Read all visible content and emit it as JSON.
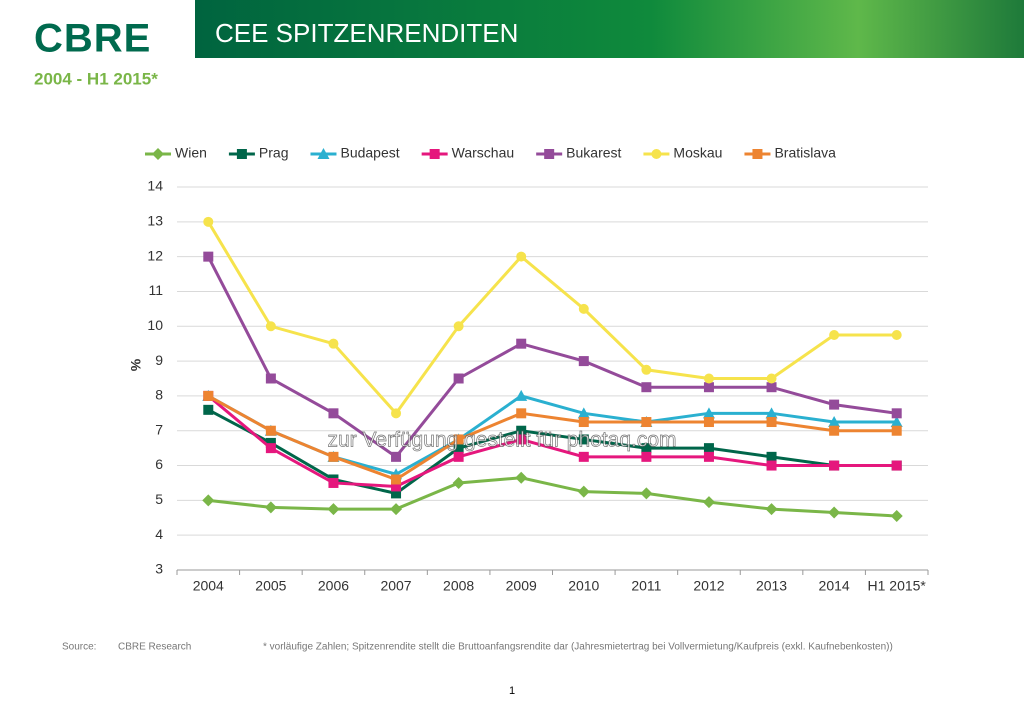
{
  "header": {
    "logo": "CBRE",
    "title": "CEE SPITZENRENDITEN",
    "subtitle": "2004 - H1 2015*"
  },
  "chart_data": {
    "type": "line",
    "ylabel": "%",
    "categories": [
      "2004",
      "2005",
      "2006",
      "2007",
      "2008",
      "2009",
      "2010",
      "2011",
      "2012",
      "2013",
      "2014",
      "H1 2015*"
    ],
    "ylim": [
      3,
      14
    ],
    "yticks": [
      3,
      4,
      5,
      6,
      7,
      8,
      9,
      10,
      11,
      12,
      13,
      14
    ],
    "grid": true,
    "legend": "top",
    "series": [
      {
        "name": "Wien",
        "color": "#7ab648",
        "marker": "diamond",
        "values": [
          5.0,
          4.8,
          4.75,
          4.75,
          5.5,
          5.65,
          5.25,
          5.2,
          4.95,
          4.75,
          4.65,
          4.55
        ]
      },
      {
        "name": "Prag",
        "color": "#00664a",
        "marker": "square",
        "values": [
          7.6,
          6.65,
          5.6,
          5.2,
          6.5,
          7.0,
          6.75,
          6.5,
          6.5,
          6.25,
          6.0,
          6.0
        ]
      },
      {
        "name": "Budapest",
        "color": "#2ab0d0",
        "marker": "triangle",
        "values": [
          8.0,
          7.0,
          6.25,
          5.75,
          6.75,
          8.0,
          7.5,
          7.25,
          7.5,
          7.5,
          7.25,
          7.25
        ]
      },
      {
        "name": "Warschau",
        "color": "#e5177d",
        "marker": "square",
        "values": [
          8.0,
          6.5,
          5.5,
          5.4,
          6.25,
          6.75,
          6.25,
          6.25,
          6.25,
          6.0,
          6.0,
          6.0
        ]
      },
      {
        "name": "Bukarest",
        "color": "#944b9a",
        "marker": "square",
        "values": [
          12.0,
          8.5,
          7.5,
          6.25,
          8.5,
          9.5,
          9.0,
          8.25,
          8.25,
          8.25,
          7.75,
          7.5
        ]
      },
      {
        "name": "Moskau",
        "color": "#f6e34c",
        "marker": "circle",
        "values": [
          13.0,
          10.0,
          9.5,
          7.5,
          10.0,
          12.0,
          10.5,
          8.75,
          8.5,
          8.5,
          9.75,
          9.75
        ]
      },
      {
        "name": "Bratislava",
        "color": "#ed8431",
        "marker": "square",
        "values": [
          8.0,
          7.0,
          6.25,
          5.6,
          6.75,
          7.5,
          7.25,
          7.25,
          7.25,
          7.25,
          7.0,
          7.0
        ]
      }
    ]
  },
  "watermark": "zur Verfügung gestellt für photaq.com",
  "footer": {
    "source_label": "Source:",
    "source": "CBRE Research",
    "note": "* vorläufige Zahlen; Spitzenrendite stellt die Bruttoanfangsrendite dar (Jahresmietertrag bei Vollvermietung/Kaufpreis (exkl. Kaufnebenkosten))",
    "page": "1"
  }
}
